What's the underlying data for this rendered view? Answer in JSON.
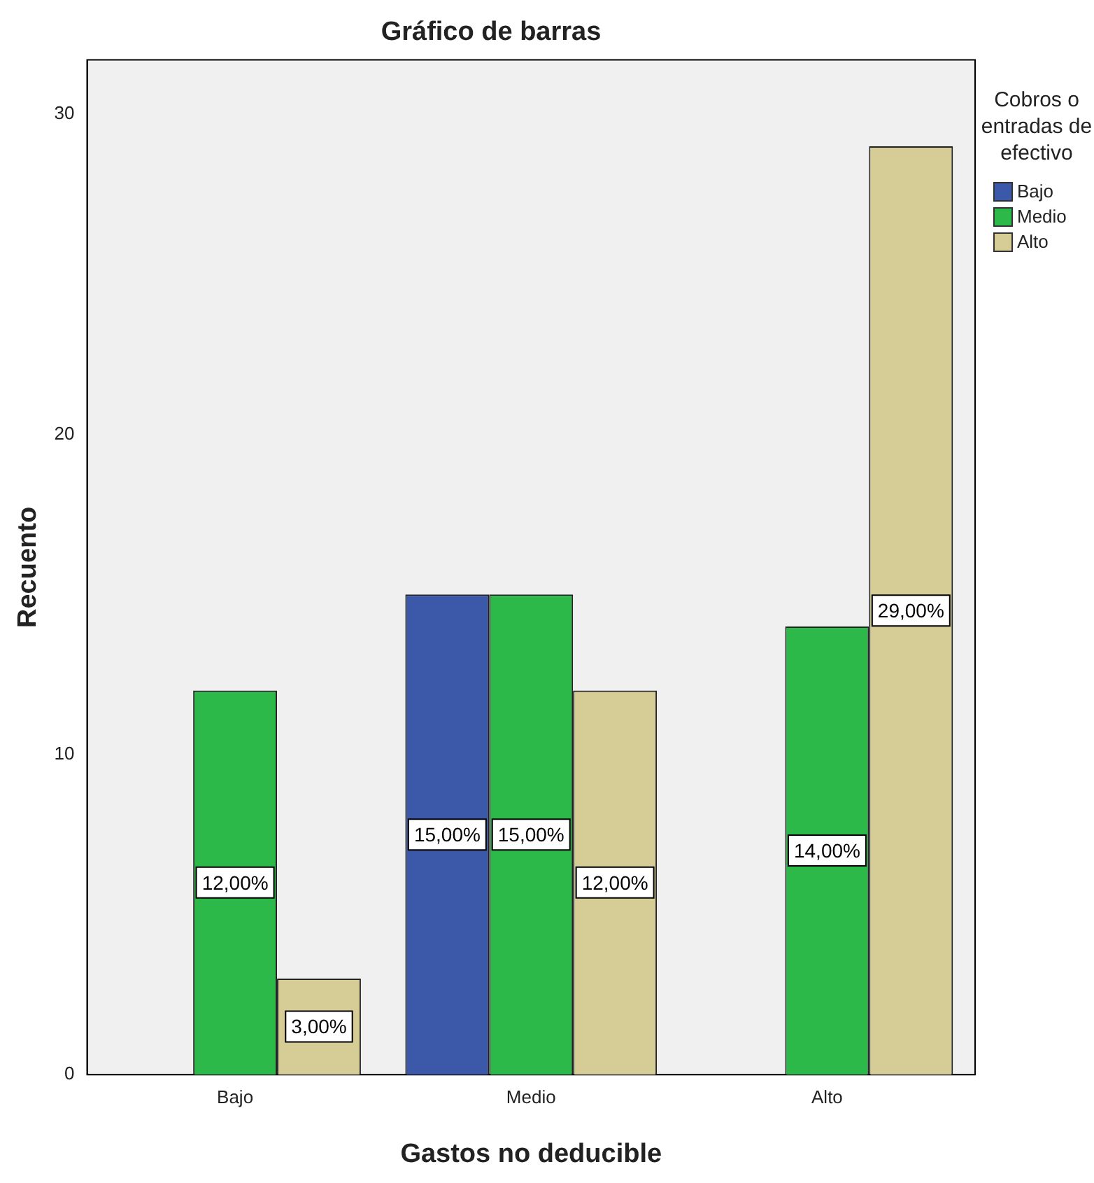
{
  "chart_data": {
    "type": "bar",
    "title": "Gráfico de barras",
    "xlabel": "Gastos no deducible",
    "ylabel": "Recuento",
    "legend_title": "Cobros o entradas de efectivo",
    "categories": [
      "Bajo",
      "Medio",
      "Alto"
    ],
    "series": [
      {
        "name": "Bajo",
        "color": "#3c58a8",
        "values": [
          null,
          15,
          null
        ],
        "value_labels": [
          null,
          "15,00%",
          null
        ]
      },
      {
        "name": "Medio",
        "color": "#2db84a",
        "values": [
          12,
          15,
          14
        ],
        "value_labels": [
          "12,00%",
          "15,00%",
          "14,00%"
        ]
      },
      {
        "name": "Alto",
        "color": "#d6cd96",
        "values": [
          3,
          12,
          29
        ],
        "value_labels": [
          "3,00%",
          "12,00%",
          "29,00%"
        ]
      }
    ],
    "ylim": [
      0,
      31.7
    ],
    "yticks": [
      0,
      10,
      20,
      30
    ],
    "grid": false,
    "legend": "top right"
  }
}
